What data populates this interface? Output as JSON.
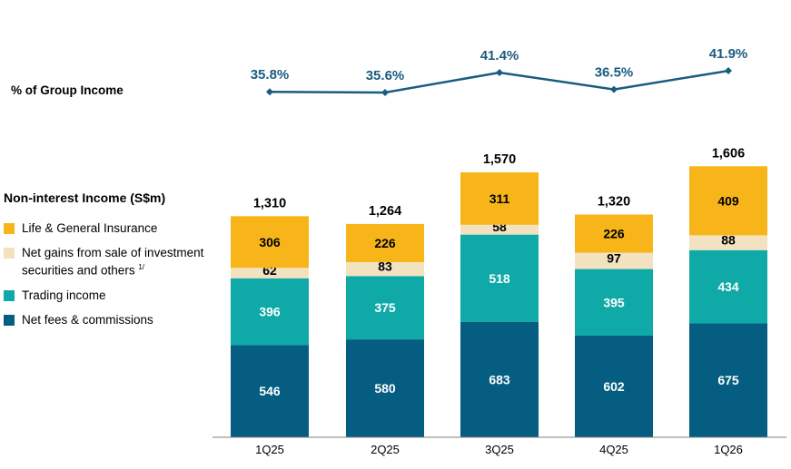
{
  "line_label": "% of Group Income",
  "legend_title": "Non-interest Income (S$m)",
  "colors": {
    "life_general_insurance": "#F7B519",
    "net_gains": "#F2E2BF",
    "trading_income": "#0FA9A7",
    "net_fees": "#055E81",
    "line": "#1A5C80",
    "axis": "#7F7F7F"
  },
  "chart_data": {
    "type": "bar",
    "stacked": true,
    "categories": [
      "1Q25",
      "2Q25",
      "3Q25",
      "4Q25",
      "1Q26"
    ],
    "series": [
      {
        "name": "Net fees & commissions",
        "values": [
          546,
          580,
          683,
          602,
          675
        ]
      },
      {
        "name": "Trading income",
        "values": [
          396,
          375,
          518,
          395,
          434
        ]
      },
      {
        "name": "Net gains from sale of investment securities and others",
        "name_sup": "1/",
        "values": [
          62,
          83,
          58,
          97,
          88
        ]
      },
      {
        "name": "Life & General Insurance",
        "values": [
          306,
          226,
          311,
          226,
          409
        ]
      }
    ],
    "totals": [
      "1,310",
      "1,264",
      "1,570",
      "1,320",
      "1,606"
    ],
    "line_series": {
      "name": "% of Group Income",
      "values": [
        35.8,
        35.6,
        41.4,
        36.5,
        41.9
      ],
      "labels": [
        "35.8%",
        "35.6%",
        "41.4%",
        "36.5%",
        "41.9%"
      ]
    },
    "legend_position": "left"
  }
}
